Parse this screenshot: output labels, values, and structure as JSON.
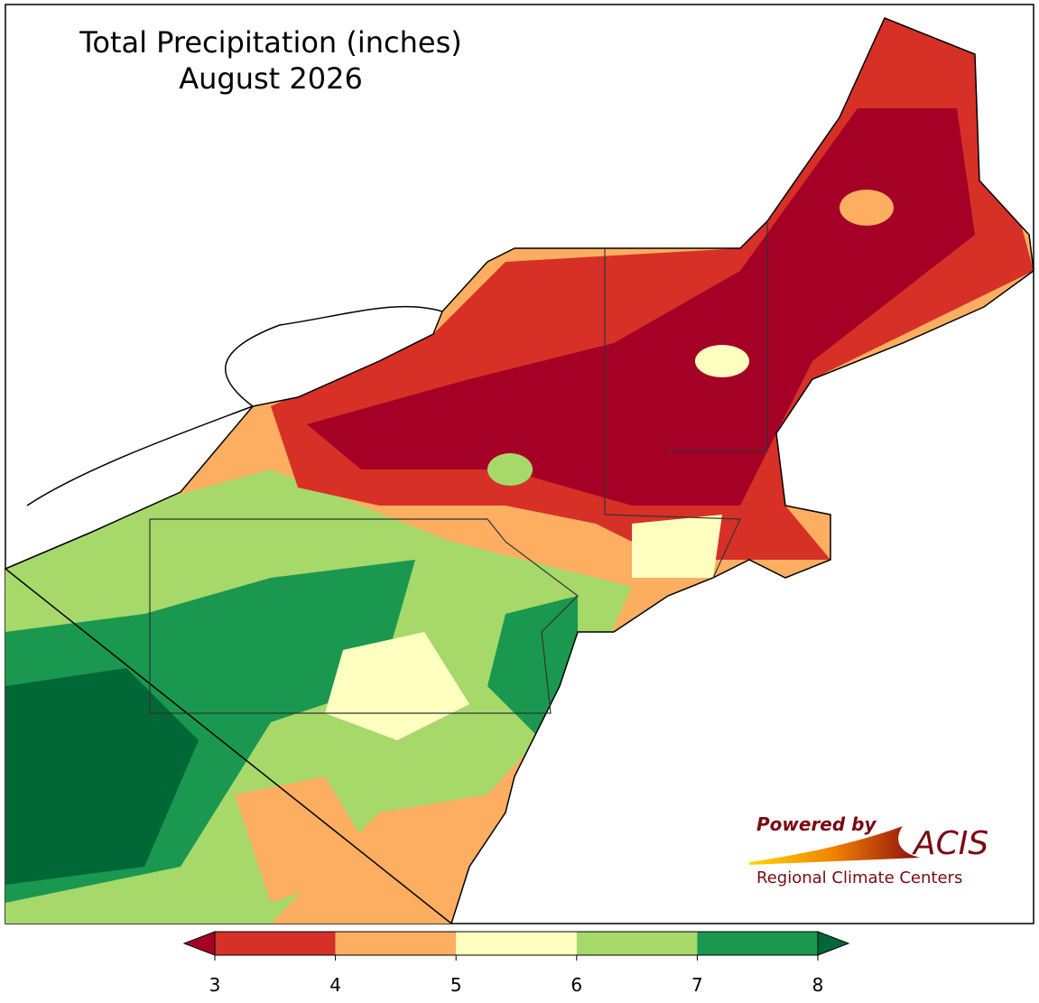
{
  "header": {
    "title": "Total Precipitation (inches)",
    "subtitle": "August 2026"
  },
  "colorbar": {
    "ticks": [
      3,
      4,
      5,
      6,
      7,
      8
    ],
    "colors": [
      "#d73027",
      "#fdae61",
      "#ffffbf",
      "#a6d96a",
      "#1a9850"
    ],
    "under_color": "#a50026",
    "over_color": "#006837"
  },
  "logo": {
    "tagline": "Powered by",
    "name": "ACIS",
    "org": "Regional Climate Centers"
  }
}
